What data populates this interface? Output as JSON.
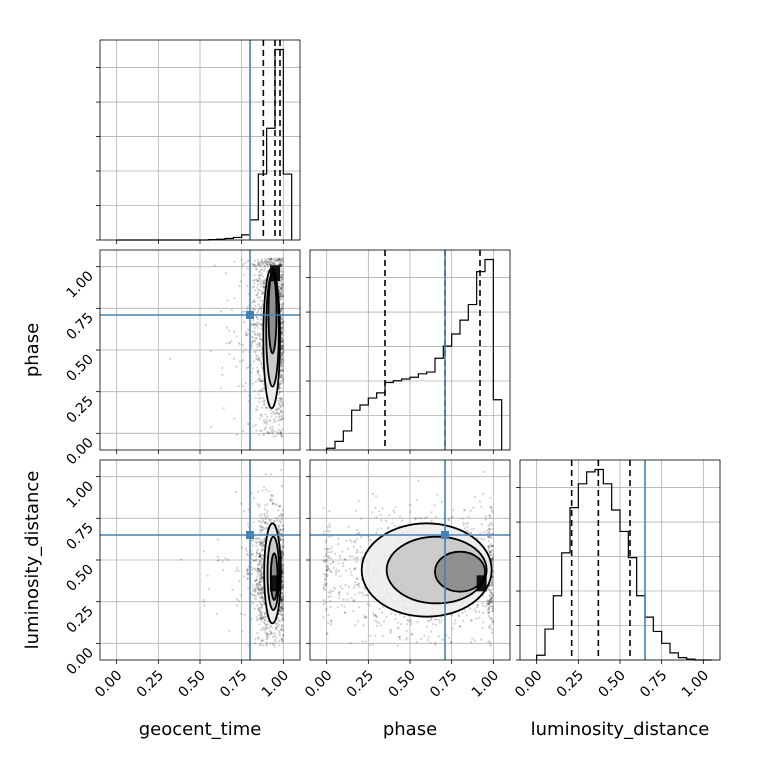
{
  "chart_data": {
    "type": "corner",
    "parameters": [
      "geocent_time",
      "phase",
      "luminosity_distance"
    ],
    "axis_labels": [
      "geocent_time",
      "phase",
      "luminosity_distance"
    ],
    "axis_range": [
      -0.1,
      1.1
    ],
    "ticks": [
      0.0,
      0.25,
      0.5,
      0.75,
      1.0
    ],
    "tick_labels": [
      "0.00",
      "0.25",
      "0.50",
      "0.75",
      "1.00"
    ],
    "grid": true,
    "truths": {
      "geocent_time": 0.8,
      "phase": 0.71,
      "luminosity_distance": 0.65
    },
    "truth_color": "#4682b4",
    "quantiles": {
      "geocent_time": [
        0.88,
        0.95,
        0.98
      ],
      "phase": [
        0.35,
        0.71,
        0.92
      ],
      "luminosity_distance": [
        0.21,
        0.37,
        0.56
      ]
    },
    "histograms": {
      "geocent_time": {
        "edges": [
          0.0,
          0.05,
          0.1,
          0.15,
          0.2,
          0.25,
          0.3,
          0.35,
          0.4,
          0.45,
          0.5,
          0.55,
          0.6,
          0.65,
          0.7,
          0.75,
          0.8,
          0.85,
          0.9,
          0.95,
          1.0,
          1.05
        ],
        "counts": [
          0,
          0,
          0,
          0,
          0,
          0,
          0,
          0,
          0,
          0,
          0,
          1,
          2,
          4,
          7,
          14,
          55,
          180,
          305,
          520,
          180
        ]
      },
      "phase": {
        "edges": [
          0.0,
          0.05,
          0.1,
          0.15,
          0.2,
          0.25,
          0.3,
          0.35,
          0.4,
          0.45,
          0.5,
          0.55,
          0.6,
          0.65,
          0.7,
          0.75,
          0.8,
          0.85,
          0.9,
          0.95,
          1.0,
          1.05
        ],
        "counts": [
          5,
          25,
          55,
          115,
          130,
          150,
          165,
          195,
          200,
          205,
          210,
          220,
          225,
          265,
          300,
          335,
          375,
          420,
          515,
          550,
          145
        ]
      },
      "luminosity_distance": {
        "edges": [
          0.0,
          0.05,
          0.1,
          0.15,
          0.2,
          0.25,
          0.3,
          0.35,
          0.4,
          0.45,
          0.5,
          0.55,
          0.6,
          0.65,
          0.7,
          0.75,
          0.8,
          0.85,
          0.9,
          0.95,
          1.0,
          1.05
        ],
        "counts": [
          10,
          65,
          135,
          225,
          320,
          370,
          395,
          400,
          370,
          315,
          270,
          215,
          135,
          90,
          60,
          35,
          15,
          5,
          2,
          0,
          0
        ]
      }
    },
    "contours": [
      {
        "x": "geocent_time",
        "y": "phase",
        "scatter_center": [
          0.93,
          0.6
        ],
        "scatter_spread": [
          0.06,
          0.28
        ],
        "levels": [
          {
            "cx": 0.93,
            "cy": 0.57,
            "rx": 0.05,
            "ry": 0.42
          },
          {
            "cx": 0.935,
            "cy": 0.62,
            "rx": 0.038,
            "ry": 0.34
          },
          {
            "cx": 0.935,
            "cy": 0.72,
            "rx": 0.024,
            "ry": 0.24
          }
        ],
        "density_peak": [
          0.95,
          0.96
        ]
      },
      {
        "x": "geocent_time",
        "y": "luminosity_distance",
        "scatter_center": [
          0.93,
          0.42
        ],
        "scatter_spread": [
          0.06,
          0.18
        ],
        "levels": [
          {
            "cx": 0.935,
            "cy": 0.42,
            "rx": 0.05,
            "ry": 0.3
          },
          {
            "cx": 0.94,
            "cy": 0.42,
            "rx": 0.035,
            "ry": 0.22
          },
          {
            "cx": 0.945,
            "cy": 0.4,
            "rx": 0.02,
            "ry": 0.14
          }
        ],
        "density_peak": [
          0.95,
          0.36
        ]
      },
      {
        "x": "phase",
        "y": "luminosity_distance",
        "scatter_center": [
          0.6,
          0.42
        ],
        "scatter_spread": [
          0.28,
          0.19
        ],
        "levels": [
          {
            "cx": 0.6,
            "cy": 0.44,
            "rx": 0.39,
            "ry": 0.28
          },
          {
            "cx": 0.66,
            "cy": 0.44,
            "rx": 0.3,
            "ry": 0.2
          },
          {
            "cx": 0.8,
            "cy": 0.43,
            "rx": 0.15,
            "ry": 0.12
          }
        ],
        "density_peak": [
          0.93,
          0.36
        ]
      }
    ]
  }
}
